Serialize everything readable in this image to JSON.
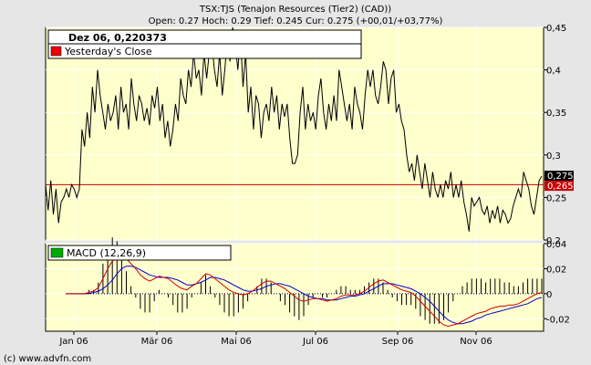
{
  "header": {
    "title": "TSX:TJS (Tenajon Resources (Tier2) (CAD))",
    "ohlc": "Open: 0.27 Hoch: 0.29 Tief: 0.245 Cur: 0.275 (+00,01/+03,77%)"
  },
  "footer": {
    "copyright": "(c) www.advfn.com"
  },
  "colors": {
    "background": "#e6e6e6",
    "plot_bg": "#ffffcc",
    "grid": "#ffffff",
    "price_line": "#000000",
    "close_line": "#cc0000",
    "macd_line": "#0000cc",
    "signal_line": "#cc0000",
    "histogram": "#000000",
    "legend_macd": "#00aa00",
    "legend_close": "#ee0000"
  },
  "chart_data": [
    {
      "type": "line",
      "name": "price",
      "legend": [
        {
          "label": "Dez 06, 0,220373",
          "style": "header"
        },
        {
          "label": "Yesterday's Close",
          "color": "#ee0000"
        }
      ],
      "x_ticks": [
        "Jan 06",
        "Mär 06",
        "Mai 06",
        "Jul 06",
        "Sep 06",
        "Nov 06"
      ],
      "y_ticks": [
        "0,45",
        "0,4",
        "0,35",
        "0,3",
        "0,25",
        "0,2"
      ],
      "ylim": [
        0.2,
        0.45
      ],
      "yesterday_close": 0.265,
      "markers": [
        {
          "label": "0,275",
          "value": 0.275,
          "bg": "#000000",
          "fg": "#ffffff"
        },
        {
          "label": "0,265",
          "value": 0.265,
          "bg": "#cc0000",
          "fg": "#ffffff"
        }
      ],
      "series_x_range": [
        "Dez 05",
        "Dez 06"
      ],
      "values": [
        0.265,
        0.235,
        0.27,
        0.23,
        0.26,
        0.22,
        0.245,
        0.25,
        0.26,
        0.25,
        0.265,
        0.26,
        0.25,
        0.26,
        0.33,
        0.31,
        0.35,
        0.32,
        0.38,
        0.35,
        0.4,
        0.37,
        0.35,
        0.33,
        0.36,
        0.34,
        0.35,
        0.37,
        0.33,
        0.38,
        0.35,
        0.36,
        0.33,
        0.39,
        0.36,
        0.34,
        0.37,
        0.36,
        0.34,
        0.355,
        0.335,
        0.37,
        0.355,
        0.38,
        0.34,
        0.36,
        0.32,
        0.34,
        0.31,
        0.33,
        0.36,
        0.34,
        0.39,
        0.37,
        0.36,
        0.4,
        0.38,
        0.42,
        0.39,
        0.4,
        0.37,
        0.42,
        0.39,
        0.42,
        0.43,
        0.4,
        0.38,
        0.42,
        0.37,
        0.4,
        0.44,
        0.41,
        0.45,
        0.43,
        0.4,
        0.44,
        0.38,
        0.42,
        0.35,
        0.38,
        0.33,
        0.37,
        0.36,
        0.32,
        0.35,
        0.36,
        0.34,
        0.38,
        0.35,
        0.37,
        0.33,
        0.36,
        0.345,
        0.36,
        0.32,
        0.29,
        0.29,
        0.3,
        0.35,
        0.38,
        0.33,
        0.36,
        0.34,
        0.35,
        0.33,
        0.37,
        0.39,
        0.35,
        0.33,
        0.36,
        0.34,
        0.37,
        0.34,
        0.4,
        0.38,
        0.36,
        0.34,
        0.36,
        0.33,
        0.38,
        0.36,
        0.35,
        0.33,
        0.37,
        0.4,
        0.38,
        0.4,
        0.37,
        0.36,
        0.38,
        0.41,
        0.4,
        0.36,
        0.39,
        0.4,
        0.35,
        0.36,
        0.34,
        0.33,
        0.3,
        0.28,
        0.29,
        0.27,
        0.3,
        0.28,
        0.26,
        0.29,
        0.27,
        0.25,
        0.28,
        0.26,
        0.25,
        0.265,
        0.25,
        0.27,
        0.26,
        0.28,
        0.25,
        0.265,
        0.25,
        0.27,
        0.245,
        0.23,
        0.21,
        0.25,
        0.24,
        0.245,
        0.25,
        0.235,
        0.23,
        0.24,
        0.22,
        0.235,
        0.225,
        0.24,
        0.22,
        0.235,
        0.23,
        0.22,
        0.225,
        0.24,
        0.25,
        0.26,
        0.25,
        0.28,
        0.27,
        0.26,
        0.24,
        0.23,
        0.25,
        0.27,
        0.275
      ]
    },
    {
      "type": "line",
      "name": "macd",
      "legend": [
        {
          "label": "MACD (12,26,9)",
          "color": "#00aa00"
        }
      ],
      "x_ticks": [
        "Jan 06",
        "Mär 06",
        "Mai 06",
        "Jul 06",
        "Sep 06",
        "Nov 06"
      ],
      "y_ticks": [
        "0,04",
        "0,02",
        "0",
        "-0,02"
      ],
      "ylim": [
        -0.03,
        0.04
      ],
      "series": [
        {
          "name": "MACD",
          "color": "#cc0000",
          "values": [
            0,
            0,
            0,
            0,
            0,
            0.001,
            0.002,
            0.005,
            0.012,
            0.02,
            0.026,
            0.03,
            0.031,
            0.028,
            0.024,
            0.02,
            0.015,
            0.012,
            0.01,
            0.012,
            0.014,
            0.013,
            0.012,
            0.009,
            0.006,
            0.004,
            0.003,
            0.006,
            0.008,
            0.012,
            0.016,
            0.015,
            0.012,
            0.009,
            0.006,
            0.003,
            0.001,
            0,
            -0.001,
            0,
            0.002,
            0.005,
            0.008,
            0.01,
            0.01,
            0.008,
            0.006,
            0.004,
            0.001,
            -0.002,
            -0.005,
            -0.006,
            -0.005,
            -0.004,
            -0.004,
            -0.005,
            -0.006,
            -0.005,
            -0.004,
            -0.002,
            -0.001,
            -0.001,
            -0.001,
            0,
            0.002,
            0.005,
            0.008,
            0.01,
            0.011,
            0.009,
            0.007,
            0.005,
            0.003,
            0.002,
            0.001,
            -0.002,
            -0.006,
            -0.01,
            -0.014,
            -0.018,
            -0.022,
            -0.025,
            -0.026,
            -0.025,
            -0.024,
            -0.022,
            -0.02,
            -0.018,
            -0.016,
            -0.015,
            -0.014,
            -0.012,
            -0.011,
            -0.01,
            -0.01,
            -0.009,
            -0.009,
            -0.008,
            -0.006,
            -0.004,
            -0.002,
            0,
            0.001
          ]
        },
        {
          "name": "Signal",
          "color": "#0000cc",
          "values": [
            0,
            0,
            0,
            0,
            0,
            0,
            0.001,
            0.002,
            0.004,
            0.007,
            0.011,
            0.016,
            0.02,
            0.022,
            0.022,
            0.021,
            0.019,
            0.017,
            0.015,
            0.014,
            0.013,
            0.013,
            0.013,
            0.012,
            0.011,
            0.009,
            0.007,
            0.007,
            0.008,
            0.009,
            0.011,
            0.013,
            0.013,
            0.012,
            0.011,
            0.009,
            0.007,
            0.005,
            0.003,
            0.002,
            0.002,
            0.003,
            0.004,
            0.006,
            0.007,
            0.008,
            0.008,
            0.007,
            0.006,
            0.004,
            0.002,
            0,
            -0.002,
            -0.003,
            -0.004,
            -0.004,
            -0.005,
            -0.005,
            -0.005,
            -0.004,
            -0.003,
            -0.002,
            -0.002,
            -0.001,
            0,
            0.002,
            0.004,
            0.006,
            0.008,
            0.008,
            0.008,
            0.007,
            0.006,
            0.005,
            0.004,
            0.002,
            0,
            -0.003,
            -0.006,
            -0.01,
            -0.014,
            -0.018,
            -0.021,
            -0.023,
            -0.024,
            -0.024,
            -0.023,
            -0.022,
            -0.02,
            -0.019,
            -0.017,
            -0.016,
            -0.015,
            -0.014,
            -0.013,
            -0.012,
            -0.011,
            -0.01,
            -0.009,
            -0.008,
            -0.006,
            -0.004,
            -0.003
          ]
        }
      ]
    }
  ]
}
